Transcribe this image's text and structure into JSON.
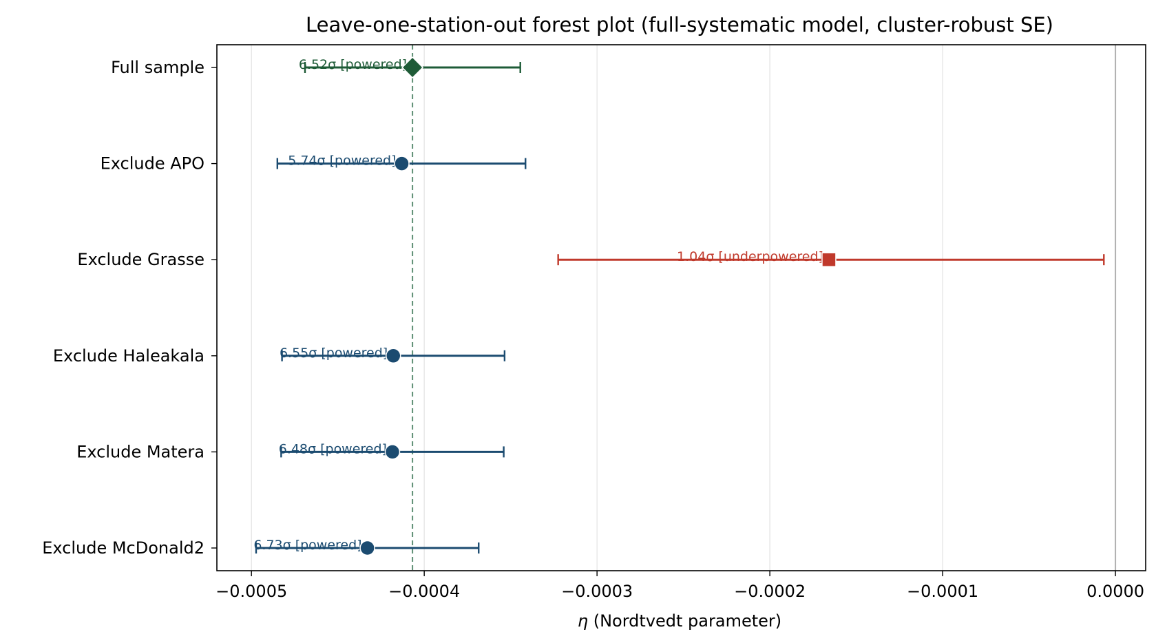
{
  "chart_data": {
    "type": "scatter",
    "subtype": "forest",
    "title": "Leave-one-station-out forest plot (full-systematic model, cluster-robust SE)",
    "xlabel_symbol": "η",
    "xlabel_text": " (Nordtvedt parameter)",
    "xlim": [
      -0.00052,
      1.75e-05
    ],
    "x_ticks": [
      -0.0005,
      -0.0004,
      -0.0003,
      -0.0002,
      -0.0001,
      0.0
    ],
    "x_tick_labels": [
      "−0.0005",
      "−0.0004",
      "−0.0003",
      "−0.0002",
      "−0.0001",
      "0.0000"
    ],
    "grid_x": true,
    "reference_line": {
      "x": -0.0004068,
      "style": "dashed",
      "color": "#5e8f74"
    },
    "zero_line": {
      "x": 0.0,
      "color": "#b0b0b0"
    },
    "rows": [
      {
        "label": "Full sample",
        "estimate": -0.0004068,
        "ci_low": -0.000469,
        "ci_high": -0.0003444,
        "annotation": "6.52σ [powered]",
        "marker": "diamond",
        "color": "#1e5b37"
      },
      {
        "label": "Exclude APO",
        "estimate": -0.000413,
        "ci_low": -0.000485,
        "ci_high": -0.0003414,
        "annotation": "5.74σ [powered]",
        "marker": "circle",
        "color": "#1b4b70"
      },
      {
        "label": "Exclude Grasse",
        "estimate": -0.0001658,
        "ci_low": -0.0003225,
        "ci_high": -6.7e-06,
        "annotation": "1.04σ [underpowered]",
        "marker": "square",
        "color": "#c0392b"
      },
      {
        "label": "Exclude Haleakala",
        "estimate": -0.0004179,
        "ci_low": -0.0004823,
        "ci_high": -0.0003535,
        "annotation": "6.55σ [powered]",
        "marker": "circle",
        "color": "#1b4b70"
      },
      {
        "label": "Exclude Matera",
        "estimate": -0.0004184,
        "ci_low": -0.0004828,
        "ci_high": -0.000354,
        "annotation": "6.48σ [powered]",
        "marker": "circle",
        "color": "#1b4b70"
      },
      {
        "label": "Exclude McDonald2",
        "estimate": -0.0004329,
        "ci_low": -0.0004973,
        "ci_high": -0.0003685,
        "annotation": "6.73σ [powered]",
        "marker": "circle",
        "color": "#1b4b70"
      }
    ]
  }
}
